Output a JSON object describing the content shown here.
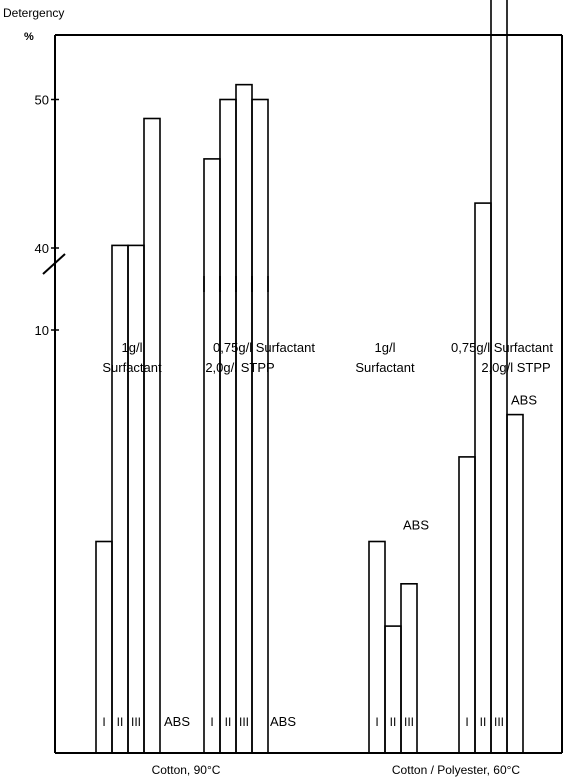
{
  "chart_data": {
    "type": "bar",
    "ylabel": "Detergency",
    "yunit": "%",
    "axis_break": [
      30,
      40
    ],
    "yticks": [
      10,
      20,
      30,
      40,
      50
    ],
    "groups": [
      {
        "label": "Cotton, 90°C",
        "clusters": [
          {
            "caption": [
              "1g/l",
              "Surfactant"
            ],
            "bars": [
              {
                "label": "I",
                "value": 5
              },
              {
                "label": "II",
                "value": 12
              },
              {
                "label": "III",
                "value": 12
              },
              {
                "label": "ABS",
                "value": 15
              }
            ]
          },
          {
            "caption": [
              "0,75g/l Surfactant",
              "2,0g/l STPP"
            ],
            "bars": [
              {
                "label": "I",
                "value": 46
              },
              {
                "label": "II",
                "value": 50
              },
              {
                "label": "III",
                "value": 51
              },
              {
                "label": "ABS",
                "value": 50
              }
            ]
          }
        ]
      },
      {
        "label": "Cotton / Polyester, 60°C",
        "clusters": [
          {
            "caption": [
              "1g/l",
              "Surfactant"
            ],
            "bars": [
              {
                "label": "I",
                "value": 5
              },
              {
                "label": "II",
                "value": 3
              },
              {
                "label": "III",
                "value": 4
              }
            ],
            "abs_label": "ABS"
          },
          {
            "caption": [
              "0,75g/l Surfactant",
              "2,0g/l STPP"
            ],
            "bars": [
              {
                "label": "I",
                "value": 7
              },
              {
                "label": "II",
                "value": 13
              },
              {
                "label": "III",
                "value": 20
              },
              {
                "label": "ABS",
                "value": 8
              }
            ]
          }
        ]
      }
    ]
  }
}
